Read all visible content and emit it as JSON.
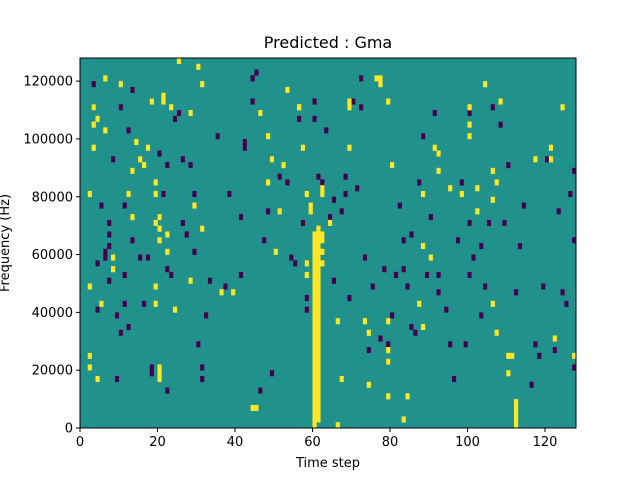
{
  "chart_data": {
    "type": "heatmap",
    "title": "Predicted : Gma",
    "xlabel": "Time step",
    "ylabel": "Frequency (Hz)",
    "xlim": [
      0,
      128
    ],
    "ylim": [
      0,
      128000
    ],
    "x_ticks": [
      0,
      20,
      40,
      60,
      80,
      100,
      120
    ],
    "y_ticks": [
      0,
      20000,
      40000,
      60000,
      80000,
      100000,
      120000
    ],
    "grid": false,
    "legend": "none",
    "n_time_steps": 128,
    "n_frequency_bins": 64,
    "background_value": 0,
    "values_legend": {
      "low": -1,
      "mid": 0,
      "high": 1
    },
    "colors": {
      "low": "#440154",
      "mid": "#21918c",
      "high": "#fde725"
    },
    "high_cells": [
      [
        2,
        10
      ],
      [
        2,
        12
      ],
      [
        2,
        24
      ],
      [
        2,
        40
      ],
      [
        3,
        48
      ],
      [
        3,
        52
      ],
      [
        3,
        55
      ],
      [
        4,
        8
      ],
      [
        4,
        53
      ],
      [
        5,
        21
      ],
      [
        6,
        51
      ],
      [
        6,
        60
      ],
      [
        8,
        27
      ],
      [
        8,
        29
      ],
      [
        10,
        59
      ],
      [
        12,
        40
      ],
      [
        13,
        44
      ],
      [
        13,
        36
      ],
      [
        14,
        49
      ],
      [
        15,
        46
      ],
      [
        16,
        45
      ],
      [
        17,
        48
      ],
      [
        18,
        56
      ],
      [
        19,
        24
      ],
      [
        19,
        21
      ],
      [
        19,
        35
      ],
      [
        19,
        40
      ],
      [
        19,
        42
      ],
      [
        20,
        8
      ],
      [
        20,
        9
      ],
      [
        20,
        10
      ],
      [
        20,
        32
      ],
      [
        20,
        34
      ],
      [
        20,
        36
      ],
      [
        21,
        56
      ],
      [
        21,
        57
      ],
      [
        22,
        30
      ],
      [
        22,
        33
      ],
      [
        23,
        55
      ],
      [
        24,
        20
      ],
      [
        25,
        63
      ],
      [
        28,
        25
      ],
      [
        28,
        54
      ],
      [
        29,
        38
      ],
      [
        30,
        62
      ],
      [
        31,
        34
      ],
      [
        31,
        59
      ],
      [
        36,
        23
      ],
      [
        39,
        23
      ],
      [
        44,
        3
      ],
      [
        45,
        3
      ],
      [
        46,
        54
      ],
      [
        48,
        42
      ],
      [
        48,
        50
      ],
      [
        49,
        46
      ],
      [
        50,
        30
      ],
      [
        51,
        37
      ],
      [
        52,
        45
      ],
      [
        53,
        58
      ],
      [
        56,
        55
      ],
      [
        56,
        55
      ],
      [
        57,
        48
      ],
      [
        58,
        26
      ],
      [
        58,
        28
      ],
      [
        58,
        40
      ],
      [
        59,
        37
      ],
      [
        59,
        38
      ],
      [
        60,
        0
      ],
      [
        60,
        1
      ],
      [
        60,
        2
      ],
      [
        60,
        3
      ],
      [
        60,
        4
      ],
      [
        60,
        5
      ],
      [
        60,
        6
      ],
      [
        60,
        7
      ],
      [
        60,
        8
      ],
      [
        60,
        9
      ],
      [
        60,
        10
      ],
      [
        60,
        11
      ],
      [
        60,
        12
      ],
      [
        60,
        13
      ],
      [
        60,
        14
      ],
      [
        60,
        15
      ],
      [
        60,
        16
      ],
      [
        60,
        17
      ],
      [
        60,
        18
      ],
      [
        60,
        19
      ],
      [
        60,
        20
      ],
      [
        60,
        21
      ],
      [
        60,
        22
      ],
      [
        60,
        23
      ],
      [
        60,
        24
      ],
      [
        60,
        25
      ],
      [
        60,
        26
      ],
      [
        60,
        27
      ],
      [
        60,
        28
      ],
      [
        60,
        29
      ],
      [
        60,
        30
      ],
      [
        60,
        31
      ],
      [
        60,
        32
      ],
      [
        60,
        33
      ],
      [
        61,
        1
      ],
      [
        61,
        2
      ],
      [
        61,
        3
      ],
      [
        61,
        4
      ],
      [
        61,
        5
      ],
      [
        61,
        6
      ],
      [
        61,
        7
      ],
      [
        61,
        8
      ],
      [
        61,
        9
      ],
      [
        61,
        10
      ],
      [
        61,
        11
      ],
      [
        61,
        12
      ],
      [
        61,
        13
      ],
      [
        61,
        14
      ],
      [
        61,
        15
      ],
      [
        61,
        16
      ],
      [
        61,
        17
      ],
      [
        61,
        18
      ],
      [
        61,
        19
      ],
      [
        61,
        20
      ],
      [
        61,
        21
      ],
      [
        61,
        22
      ],
      [
        61,
        23
      ],
      [
        61,
        24
      ],
      [
        61,
        25
      ],
      [
        61,
        26
      ],
      [
        61,
        27
      ],
      [
        61,
        28
      ],
      [
        61,
        29
      ],
      [
        61,
        30
      ],
      [
        61,
        31
      ],
      [
        61,
        32
      ],
      [
        61,
        33
      ],
      [
        61,
        34
      ],
      [
        62,
        28
      ],
      [
        62,
        30
      ],
      [
        62,
        32
      ],
      [
        62,
        33
      ],
      [
        62,
        40
      ],
      [
        62,
        41
      ],
      [
        64,
        35
      ],
      [
        66,
        18
      ],
      [
        66,
        0
      ],
      [
        67,
        8
      ],
      [
        69,
        48
      ],
      [
        69,
        55
      ],
      [
        69,
        56
      ],
      [
        73,
        18
      ],
      [
        74,
        7
      ],
      [
        74,
        16
      ],
      [
        76,
        60
      ],
      [
        77,
        59
      ],
      [
        77,
        60
      ],
      [
        79,
        56
      ],
      [
        79,
        5
      ],
      [
        79,
        11
      ],
      [
        79,
        13
      ],
      [
        79,
        18
      ],
      [
        80,
        45
      ],
      [
        83,
        1
      ],
      [
        84,
        5
      ],
      [
        87,
        21
      ],
      [
        88,
        17
      ],
      [
        88,
        31
      ],
      [
        88,
        40
      ],
      [
        90,
        29
      ],
      [
        91,
        48
      ],
      [
        92,
        47
      ],
      [
        92,
        44
      ],
      [
        95,
        41
      ],
      [
        98,
        40
      ],
      [
        100,
        50
      ],
      [
        100,
        52
      ],
      [
        100,
        55
      ],
      [
        102,
        37
      ],
      [
        102,
        41
      ],
      [
        104,
        59
      ],
      [
        106,
        21
      ],
      [
        106,
        39
      ],
      [
        106,
        44
      ],
      [
        107,
        42
      ],
      [
        107,
        16
      ],
      [
        108,
        56
      ],
      [
        110,
        9
      ],
      [
        110,
        12
      ],
      [
        111,
        12
      ],
      [
        112,
        0
      ],
      [
        112,
        1
      ],
      [
        112,
        2
      ],
      [
        112,
        3
      ],
      [
        112,
        4
      ],
      [
        117,
        46
      ],
      [
        121,
        46
      ],
      [
        121,
        48
      ],
      [
        122,
        15
      ],
      [
        124,
        55
      ],
      [
        127,
        12
      ]
    ],
    "low_cells": [
      [
        3,
        55
      ],
      [
        3,
        59
      ],
      [
        4,
        20
      ],
      [
        4,
        28
      ],
      [
        5,
        38
      ],
      [
        6,
        29
      ],
      [
        6,
        30
      ],
      [
        7,
        31
      ],
      [
        7,
        35
      ],
      [
        7,
        25
      ],
      [
        7,
        33
      ],
      [
        8,
        46
      ],
      [
        9,
        8
      ],
      [
        9,
        19
      ],
      [
        10,
        16
      ],
      [
        10,
        55
      ],
      [
        11,
        38
      ],
      [
        11,
        26
      ],
      [
        11,
        21
      ],
      [
        12,
        17
      ],
      [
        12,
        51
      ],
      [
        13,
        32
      ],
      [
        13,
        58
      ],
      [
        15,
        29
      ],
      [
        16,
        21
      ],
      [
        17,
        29
      ],
      [
        18,
        9
      ],
      [
        18,
        10
      ],
      [
        20,
        47
      ],
      [
        21,
        40
      ],
      [
        22,
        6
      ],
      [
        22,
        27
      ],
      [
        22,
        45
      ],
      [
        23,
        26
      ],
      [
        24,
        53
      ],
      [
        25,
        54
      ],
      [
        26,
        35
      ],
      [
        26,
        46
      ],
      [
        27,
        33
      ],
      [
        28,
        45
      ],
      [
        29,
        30
      ],
      [
        29,
        40
      ],
      [
        30,
        14
      ],
      [
        31,
        8
      ],
      [
        31,
        10
      ],
      [
        32,
        19
      ],
      [
        33,
        25
      ],
      [
        35,
        50
      ],
      [
        37,
        24
      ],
      [
        38,
        40
      ],
      [
        41,
        26
      ],
      [
        41,
        36
      ],
      [
        42,
        49
      ],
      [
        42,
        48
      ],
      [
        44,
        56
      ],
      [
        44,
        60
      ],
      [
        45,
        61
      ],
      [
        46,
        6
      ],
      [
        47,
        32
      ],
      [
        48,
        37
      ],
      [
        49,
        9
      ],
      [
        51,
        43
      ],
      [
        53,
        42
      ],
      [
        54,
        29
      ],
      [
        55,
        28
      ],
      [
        56,
        53
      ],
      [
        57,
        35
      ],
      [
        58,
        22
      ],
      [
        58,
        20
      ],
      [
        60,
        56
      ],
      [
        60,
        53
      ],
      [
        61,
        43
      ],
      [
        62,
        41
      ],
      [
        62,
        42
      ],
      [
        63,
        51
      ],
      [
        64,
        36
      ],
      [
        65,
        25
      ],
      [
        65,
        39
      ],
      [
        67,
        37
      ],
      [
        68,
        40
      ],
      [
        68,
        43
      ],
      [
        69,
        22
      ],
      [
        70,
        56
      ],
      [
        71,
        41
      ],
      [
        72,
        55
      ],
      [
        72,
        60
      ],
      [
        73,
        29
      ],
      [
        74,
        13
      ],
      [
        75,
        24
      ],
      [
        77,
        15
      ],
      [
        78,
        27
      ],
      [
        79,
        14
      ],
      [
        79,
        11
      ],
      [
        80,
        19
      ],
      [
        81,
        26
      ],
      [
        82,
        38
      ],
      [
        83,
        27
      ],
      [
        83,
        32
      ],
      [
        84,
        24
      ],
      [
        85,
        17
      ],
      [
        85,
        33
      ],
      [
        86,
        16
      ],
      [
        87,
        42
      ],
      [
        88,
        50
      ],
      [
        89,
        26
      ],
      [
        90,
        36
      ],
      [
        91,
        54
      ],
      [
        92,
        26
      ],
      [
        92,
        23
      ],
      [
        94,
        20
      ],
      [
        95,
        14
      ],
      [
        96,
        8
      ],
      [
        97,
        32
      ],
      [
        98,
        42
      ],
      [
        99,
        14
      ],
      [
        100,
        26
      ],
      [
        100,
        35
      ],
      [
        100,
        54
      ],
      [
        101,
        29
      ],
      [
        103,
        19
      ],
      [
        103,
        31
      ],
      [
        104,
        24
      ],
      [
        105,
        35
      ],
      [
        106,
        55
      ],
      [
        108,
        52
      ],
      [
        109,
        35
      ],
      [
        110,
        45
      ],
      [
        112,
        23
      ],
      [
        113,
        31
      ],
      [
        114,
        38
      ],
      [
        116,
        7
      ],
      [
        117,
        14
      ],
      [
        118,
        12
      ],
      [
        119,
        24
      ],
      [
        120,
        46
      ],
      [
        122,
        13
      ],
      [
        123,
        37
      ],
      [
        124,
        23
      ],
      [
        125,
        21
      ],
      [
        126,
        40
      ],
      [
        127,
        10
      ],
      [
        127,
        32
      ],
      [
        127,
        44
      ]
    ]
  }
}
